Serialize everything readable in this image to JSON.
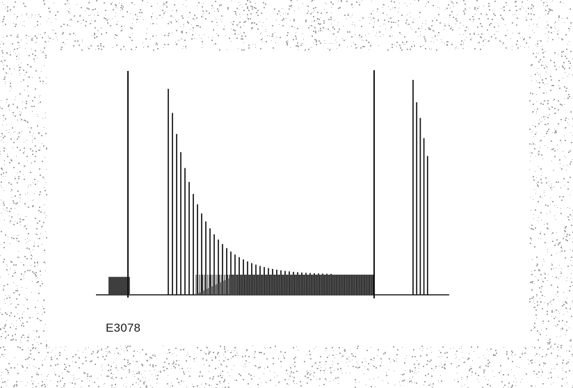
{
  "figure": {
    "label": "E3078"
  },
  "colors": {
    "ink": "#111111",
    "frame_noise": "#8a8a8a",
    "panel": "#ffffff"
  },
  "waveform": {
    "description_free": true,
    "segments": [
      {
        "name": "left-block",
        "kind": "dense-block",
        "relative_level": 0.08
      },
      {
        "name": "marker-1",
        "kind": "tall-marker",
        "relative_level": 1.0
      },
      {
        "name": "decay-train",
        "kind": "decaying-pulses",
        "start_level": 0.92,
        "end_level": 0.09,
        "pulse_count": 40
      },
      {
        "name": "steady-block",
        "kind": "dense-block",
        "relative_level": 0.09
      },
      {
        "name": "marker-2",
        "kind": "tall-marker",
        "relative_level": 1.0
      },
      {
        "name": "right-burst",
        "kind": "pulse-burst",
        "levels": [
          0.96,
          0.86,
          0.79,
          0.7,
          0.62
        ]
      }
    ]
  }
}
